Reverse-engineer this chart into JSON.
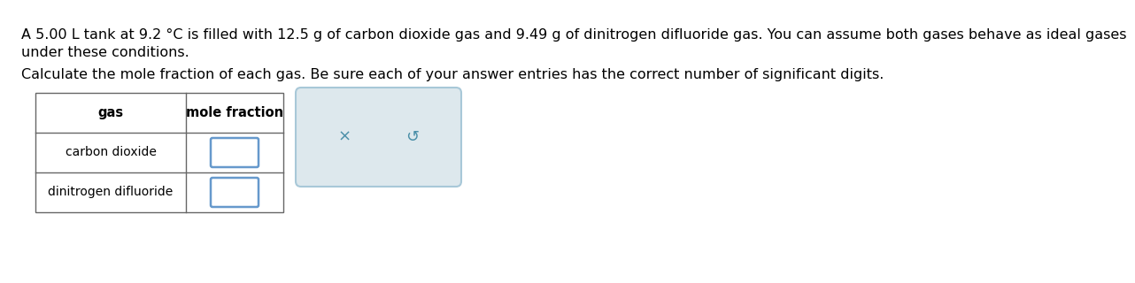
{
  "title_line1": "A 5.00 L tank at 9.2 °C is filled with 12.5 g of carbon dioxide gas and 9.49 g of dinitrogen difluoride gas. You can assume both gases behave as ideal gases",
  "title_line2": "under these conditions.",
  "subtitle": "Calculate the mole fraction of each gas. Be sure each of your answer entries has the correct number of significant digits.",
  "table_header_col1": "gas",
  "table_header_col2": "mole fraction",
  "table_row1": "carbon dioxide",
  "table_row2": "dinitrogen difluoride",
  "input_box_border_color": "#6699cc",
  "table_border_color": "#666666",
  "text_color": "#000000",
  "bg_color": "#ffffff",
  "btn_bg_color": "#dde8ed",
  "btn_border_color": "#a8c8d8",
  "symbol_color": "#4a8fa8",
  "font_size_body": 11.5,
  "font_size_table_header": 10.5,
  "font_size_table_row": 10,
  "font_size_symbol": 13
}
